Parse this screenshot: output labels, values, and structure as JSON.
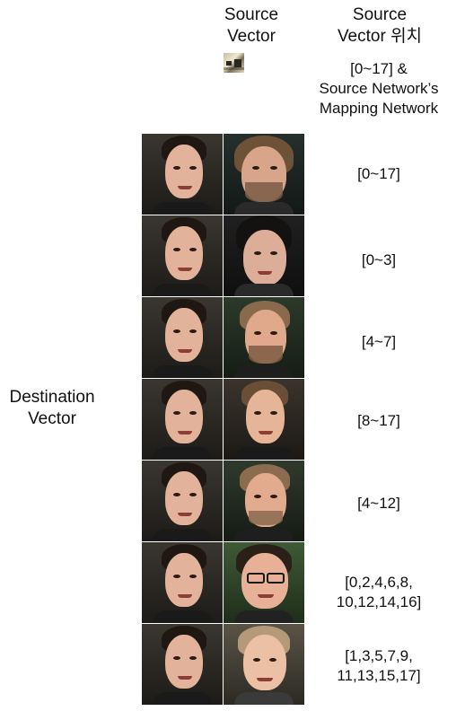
{
  "header": {
    "source_vector": [
      "Source",
      "Vector"
    ],
    "source_position": [
      "Source",
      "Vector 위치"
    ]
  },
  "source_mapping_note": [
    "[0~17] &",
    "Source Network’s",
    "Mapping Network"
  ],
  "destination_label": [
    "Destination",
    "Vector"
  ],
  "rows": [
    {
      "label": [
        "[0~17]"
      ]
    },
    {
      "label": [
        "[0~3]"
      ]
    },
    {
      "label": [
        "[4~7]"
      ]
    },
    {
      "label": [
        "[8~17]"
      ]
    },
    {
      "label": [
        "[4~12]"
      ]
    },
    {
      "label": [
        "[0,2,4,6,8,",
        "10,12,14,16]"
      ]
    },
    {
      "label": [
        "[1,3,5,7,9,",
        "11,13,15,17]"
      ]
    }
  ],
  "colors": {
    "text": "#111111",
    "background": "#ffffff"
  }
}
